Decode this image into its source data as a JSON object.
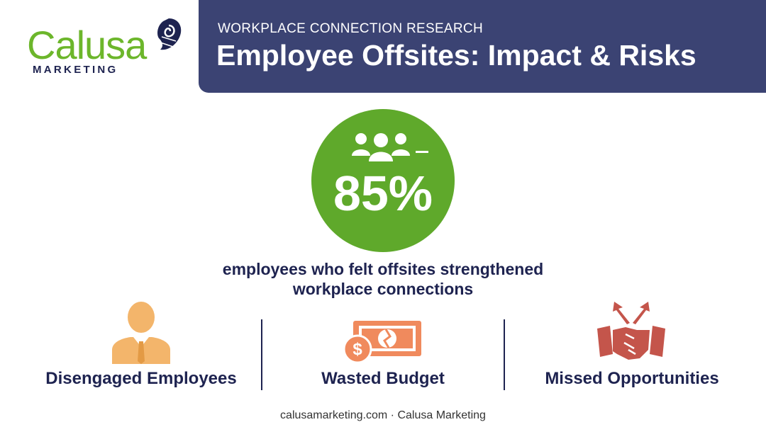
{
  "logo": {
    "name": "Calusa",
    "tagline": "MARKETING"
  },
  "header": {
    "kicker": "WORKPLACE CONNECTION RESEARCH",
    "title": "Employee Offsites: Impact & Risks"
  },
  "stat": {
    "value": "85%",
    "description": "employees who felt offsites strengthened workplace connections"
  },
  "risks": [
    "Disengaged Employees",
    "Wasted Budget",
    "Missed Opportunities"
  ],
  "footer": "calusamarketing.com · Calusa Marketing"
}
